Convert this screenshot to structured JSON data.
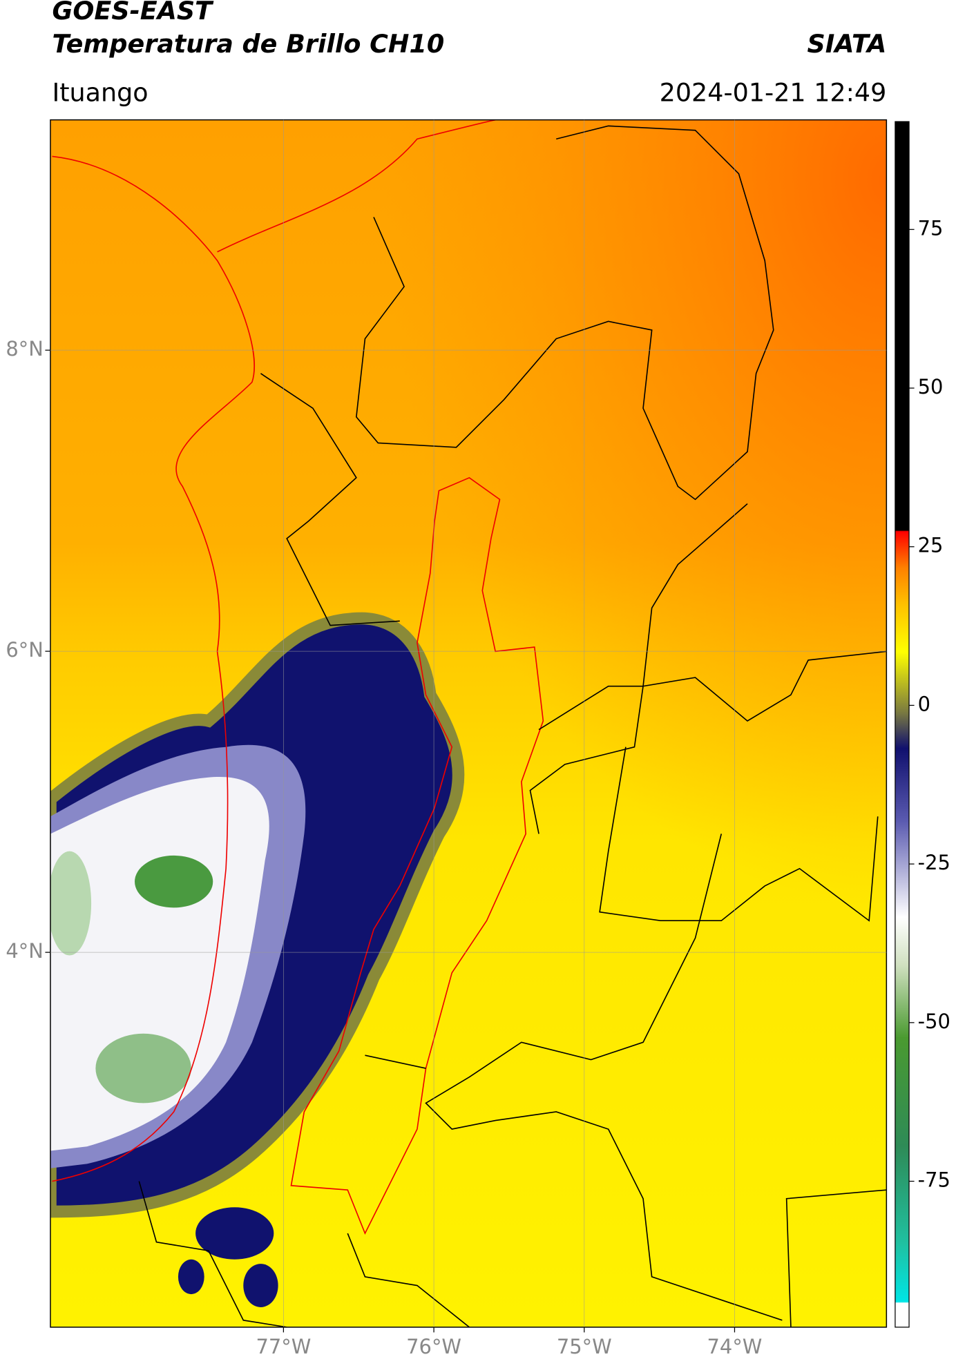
{
  "header": {
    "title": "GOES-EAST",
    "subtitle": "Temperatura de Brillo CH10",
    "agency": "SIATA",
    "location": "Ituango",
    "datetime": "2024-01-21 12:49"
  },
  "chart_data": {
    "type": "map",
    "xlim": [
      -78.55,
      -72.99
    ],
    "ylim": [
      1.51,
      9.53
    ],
    "xticks": [
      {
        "value": -77,
        "label": "77°W"
      },
      {
        "value": -76,
        "label": "76°W"
      },
      {
        "value": -75,
        "label": "75°W"
      },
      {
        "value": -74,
        "label": "74°W"
      }
    ],
    "yticks": [
      {
        "value": 8,
        "label": "8°N"
      },
      {
        "value": 6,
        "label": "6°N"
      },
      {
        "value": 4,
        "label": "4°N"
      }
    ],
    "grid": true,
    "colorbar": {
      "lim": [
        -98,
        92
      ],
      "ticks": [
        75,
        50,
        25,
        0,
        -25,
        -50,
        -75
      ]
    }
  }
}
